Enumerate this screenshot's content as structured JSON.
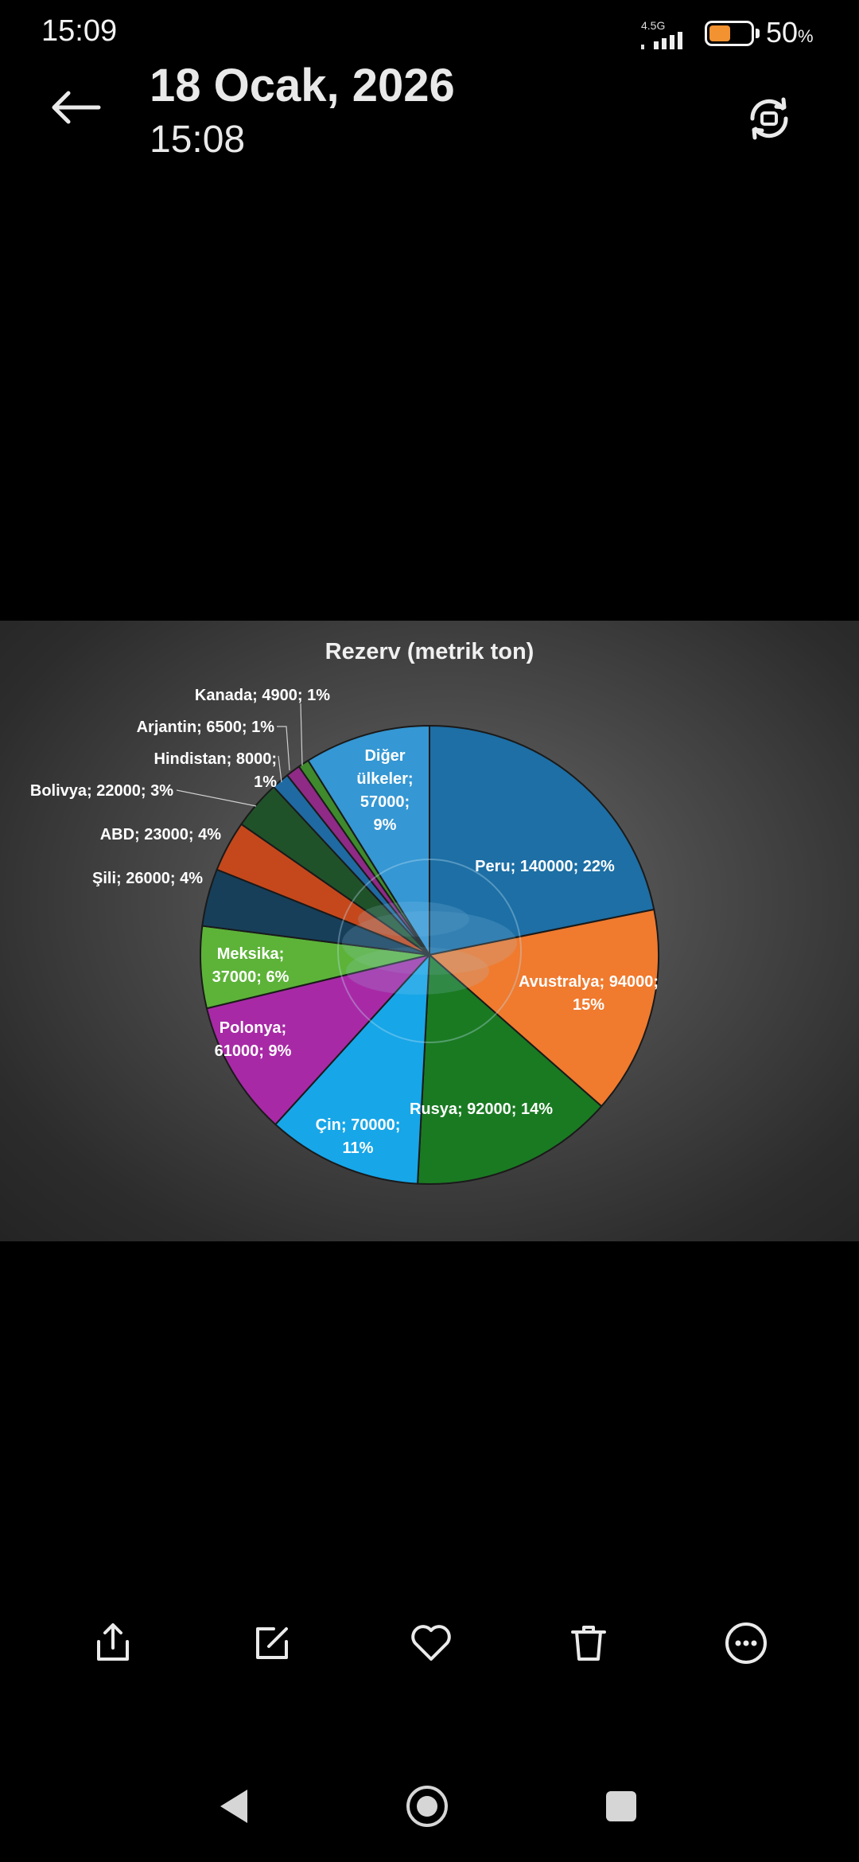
{
  "status_bar": {
    "time": "15:09",
    "network": "4.5G",
    "battery_percent": "50",
    "battery_suffix": "%",
    "battery_level": 0.5
  },
  "header": {
    "date": "18 Ocak, 2026",
    "time": "15:08"
  },
  "toolbar": {
    "icons": [
      "share-icon",
      "edit-icon",
      "heart-icon",
      "trash-icon",
      "more-icon"
    ]
  },
  "nav_bar": {
    "icons": [
      "back-triangle-icon",
      "home-circle-icon",
      "recents-square-icon"
    ]
  },
  "chart_data": {
    "type": "pie",
    "title": "Rezerv (metrik ton)",
    "slices": [
      {
        "name": "Peru",
        "value": 140000,
        "percent": "22%",
        "color": "#1d6fa5",
        "label_lines": [
          "Peru; 140000; 22%"
        ]
      },
      {
        "name": "Avustralya",
        "value": 94000,
        "percent": "15%",
        "color": "#f07a2e",
        "label_lines": [
          "Avustralya; 94000;",
          "15%"
        ]
      },
      {
        "name": "Rusya",
        "value": 92000,
        "percent": "14%",
        "color": "#1a7a22",
        "label_lines": [
          "Rusya; 92000; 14%"
        ]
      },
      {
        "name": "Çin",
        "value": 70000,
        "percent": "11%",
        "color": "#17a6e8",
        "label_lines": [
          "Çin; 70000;",
          "11%"
        ]
      },
      {
        "name": "Polonya",
        "value": 61000,
        "percent": "9%",
        "color": "#a829a6",
        "label_lines": [
          "Polonya;",
          "61000; 9%"
        ]
      },
      {
        "name": "Meksika",
        "value": 37000,
        "percent": "6%",
        "color": "#5cb338",
        "label_lines": [
          "Meksika;",
          "37000; 6%"
        ]
      },
      {
        "name": "Şili",
        "value": 26000,
        "percent": "4%",
        "color": "#173f5a",
        "label_lines": [
          "Şili; 26000; 4%"
        ]
      },
      {
        "name": "ABD",
        "value": 23000,
        "percent": "4%",
        "color": "#c5481c",
        "label_lines": [
          "ABD; 23000; 4%"
        ]
      },
      {
        "name": "Bolivya",
        "value": 22000,
        "percent": "3%",
        "color": "#20522a",
        "label_lines": [
          "Bolivya; 22000; 3%"
        ]
      },
      {
        "name": "Hindistan",
        "value": 8000,
        "percent": "1%",
        "color": "#1f6aa2",
        "label_lines": [
          "Hindistan; 8000;",
          "1%"
        ]
      },
      {
        "name": "Arjantin",
        "value": 6500,
        "percent": "1%",
        "color": "#8f2a86",
        "label_lines": [
          "Arjantin; 6500; 1%"
        ]
      },
      {
        "name": "Kanada",
        "value": 4900,
        "percent": "1%",
        "color": "#3e8a2c",
        "label_lines": [
          "Kanada; 4900; 1%"
        ]
      },
      {
        "name": "Diğer ülkeler",
        "value": 57000,
        "percent": "9%",
        "color": "#3597d3",
        "label_lines": [
          "Diğer",
          "ülkeler;",
          "57000;",
          "9%"
        ]
      }
    ]
  }
}
